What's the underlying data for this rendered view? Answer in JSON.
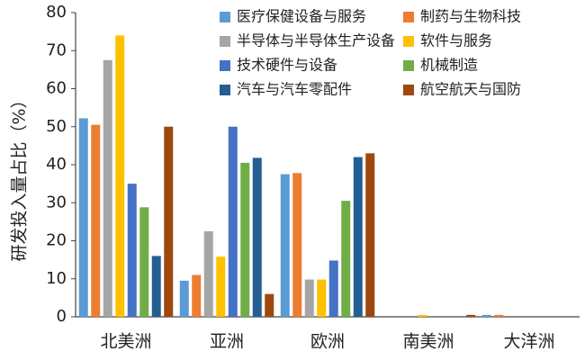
{
  "chart_data": {
    "type": "bar",
    "ylabel": "研发投入量占比（%）",
    "ylim": [
      0,
      80
    ],
    "yticks": [
      0,
      10,
      20,
      30,
      40,
      50,
      60,
      70,
      80
    ],
    "grid": false,
    "legend_position": "top-right",
    "categories": [
      "北美洲",
      "亚洲",
      "欧洲",
      "南美洲",
      "大洋洲"
    ],
    "series": [
      {
        "name": "医疗保健设备与服务",
        "color": "#5B9BD5",
        "values": [
          52.2,
          9.5,
          37.5,
          0,
          0.5
        ]
      },
      {
        "name": "制药与生物科技",
        "color": "#ED7D31",
        "values": [
          50.5,
          11.0,
          37.8,
          0,
          0.5
        ]
      },
      {
        "name": "半导体与半导体生产设备",
        "color": "#A5A5A5",
        "values": [
          67.5,
          22.5,
          9.8,
          0,
          0
        ]
      },
      {
        "name": "软件与服务",
        "color": "#FFC000",
        "values": [
          74.0,
          15.8,
          9.8,
          0.5,
          0
        ]
      },
      {
        "name": "技术硬件与设备",
        "color": "#4472C4",
        "values": [
          35.0,
          50.0,
          14.8,
          0,
          0
        ]
      },
      {
        "name": "机械制造",
        "color": "#70AD47",
        "values": [
          28.8,
          40.5,
          30.5,
          0,
          0
        ]
      },
      {
        "name": "汽车与汽车零配件",
        "color": "#255E91",
        "values": [
          16.0,
          41.8,
          42.0,
          0,
          0
        ]
      },
      {
        "name": "航空航天与国防",
        "color": "#9E480E",
        "values": [
          50.0,
          6.0,
          43.0,
          0.5,
          0
        ]
      }
    ]
  }
}
